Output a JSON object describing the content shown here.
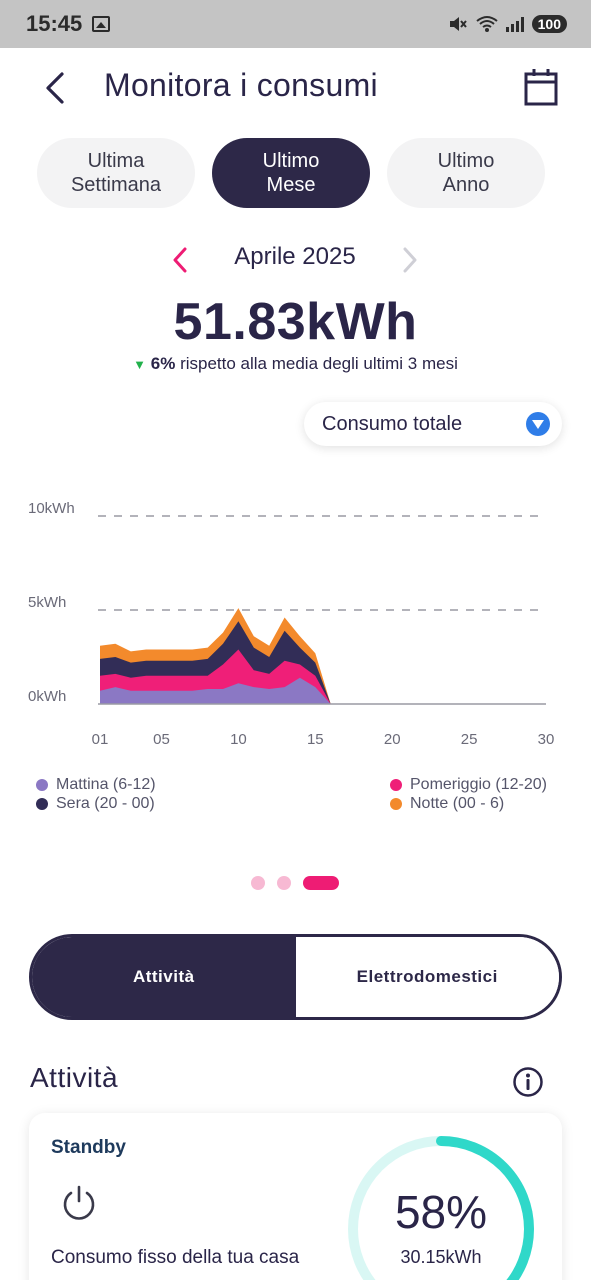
{
  "status_bar": {
    "time": "15:45",
    "battery": "100"
  },
  "header": {
    "title": "Monitora i consumi"
  },
  "tabs": [
    {
      "line1": "Ultima",
      "line2": "Settimana",
      "active": false
    },
    {
      "line1": "Ultimo",
      "line2": "Mese",
      "active": true
    },
    {
      "line1": "Ultimo",
      "line2": "Anno",
      "active": false
    }
  ],
  "month": {
    "label": "Aprile 2025"
  },
  "summary": {
    "total": "51.83kWh",
    "delta_pct": "6%",
    "delta_text": "rispetto alla media degli ultimi 3 mesi"
  },
  "dropdown": {
    "label": "Consumo totale"
  },
  "chart_data": {
    "type": "area",
    "stacked": true,
    "x": [
      1,
      2,
      3,
      4,
      5,
      6,
      7,
      8,
      9,
      10,
      11,
      12,
      13,
      14,
      15,
      16
    ],
    "x_ticks": [
      "01",
      "05",
      "10",
      "15",
      "20",
      "25",
      "30"
    ],
    "x_tick_values": [
      1,
      5,
      10,
      15,
      20,
      25,
      30
    ],
    "xlim": [
      1,
      30
    ],
    "y_ticks": [
      "0kWh",
      "5kWh",
      "10kWh"
    ],
    "y_tick_values": [
      0,
      5,
      10
    ],
    "ylim": [
      0,
      10
    ],
    "grid": "dashed-horizontal",
    "legend_position": "bottom",
    "series": [
      {
        "name": "Mattina (6-12)",
        "color": "#8b78c4",
        "values": [
          0.7,
          0.9,
          0.7,
          0.7,
          0.7,
          0.7,
          0.7,
          0.8,
          0.8,
          1.1,
          0.9,
          0.8,
          0.9,
          1.4,
          0.9,
          0
        ]
      },
      {
        "name": "Pomeriggio (12-20)",
        "color": "#ef1f78",
        "values": [
          0.8,
          0.7,
          0.7,
          0.8,
          0.8,
          0.8,
          0.8,
          0.7,
          1.3,
          1.8,
          0.9,
          0.8,
          1.4,
          0.7,
          0.6,
          0
        ]
      },
      {
        "name": "Sera (20 - 00)",
        "color": "#322d57",
        "values": [
          0.9,
          0.9,
          0.8,
          0.8,
          0.8,
          0.8,
          0.8,
          0.9,
          1.1,
          1.5,
          1.2,
          0.9,
          1.6,
          0.9,
          0.7,
          0
        ]
      },
      {
        "name": "Notte (00 - 6)",
        "color": "#f38a2c",
        "values": [
          0.7,
          0.7,
          0.6,
          0.6,
          0.6,
          0.6,
          0.6,
          0.6,
          0.6,
          0.7,
          0.6,
          0.6,
          0.7,
          0.6,
          0.5,
          0
        ]
      }
    ]
  },
  "legend": {
    "left": [
      "Mattina (6-12)",
      "Sera (20 - 00)"
    ],
    "right": [
      "Pomeriggio (12-20)",
      "Notte (00 - 6)"
    ]
  },
  "segment": {
    "left": "Attività",
    "right": "Elettrodomestici"
  },
  "section": {
    "title": "Attività"
  },
  "card": {
    "title": "Standby",
    "description": "Consumo fisso della tua casa",
    "percent": "58%",
    "percent_value": 58,
    "kwh": "30.15kWh"
  },
  "colors": {
    "primary": "#2d2848",
    "accent_pink": "#ee1c74",
    "accent_green": "#22b14c",
    "ring": "#2fd8c9"
  }
}
